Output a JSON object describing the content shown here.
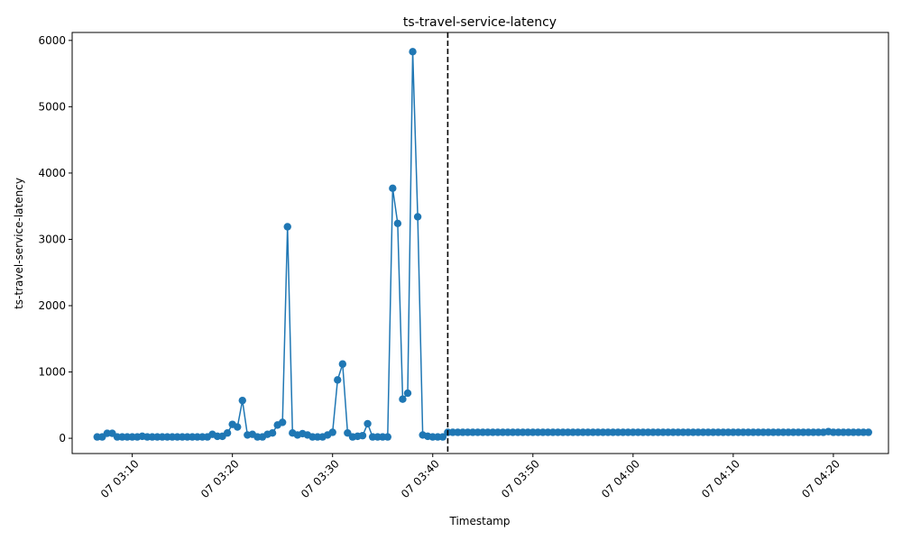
{
  "chart_data": {
    "type": "line",
    "title": "ts-travel-service-latency",
    "xlabel": "Timestamp",
    "ylabel": "ts-travel-service-latency",
    "x_start": "07 03:06:30",
    "x_interval_seconds": 30,
    "x_ticks": [
      "07 03:10",
      "07 03:20",
      "07 03:30",
      "07 03:40",
      "07 03:50",
      "07 04:00",
      "07 04:10",
      "07 04:20"
    ],
    "x_range": [
      "07 03:04:00",
      "07 04:25:30"
    ],
    "y_ticks": [
      0,
      1000,
      2000,
      3000,
      4000,
      5000,
      6000
    ],
    "ylim": [
      -230,
      6120
    ],
    "vline": "07 03:41:30",
    "line_color": "#1f77b4",
    "vline_color": "#000000",
    "series": [
      {
        "values": [
          20,
          20,
          75,
          75,
          20,
          20,
          20,
          20,
          20,
          30,
          20,
          20,
          20,
          20,
          20,
          20,
          20,
          20,
          20,
          20,
          20,
          20,
          20,
          60,
          30,
          30,
          80,
          210,
          170,
          570,
          50,
          60,
          20,
          20,
          60,
          80,
          200,
          240,
          3190,
          80,
          50,
          70,
          50,
          20,
          20,
          20,
          50,
          90,
          880,
          1120,
          80,
          20,
          30,
          40,
          220,
          20,
          20,
          20,
          20,
          3770,
          3240,
          590,
          680,
          5830,
          3340,
          50,
          30,
          20,
          20,
          20,
          90,
          90,
          90,
          90,
          90,
          90,
          90,
          90,
          90,
          90,
          90,
          90,
          90,
          90,
          90,
          90,
          90,
          90,
          90,
          90,
          90,
          90,
          90,
          90,
          90,
          90,
          90,
          90,
          90,
          90,
          90,
          90,
          90,
          90,
          90,
          90,
          90,
          90,
          90,
          90,
          90,
          90,
          90,
          90,
          90,
          90,
          90,
          90,
          90,
          90,
          90,
          90,
          90,
          90,
          90,
          90,
          90,
          90,
          90,
          90,
          90,
          90,
          90,
          90,
          90,
          90,
          90,
          90,
          90,
          90,
          90,
          90,
          90,
          90,
          90,
          90,
          100,
          90,
          90,
          90,
          90,
          90,
          90,
          90,
          90
        ]
      }
    ]
  }
}
